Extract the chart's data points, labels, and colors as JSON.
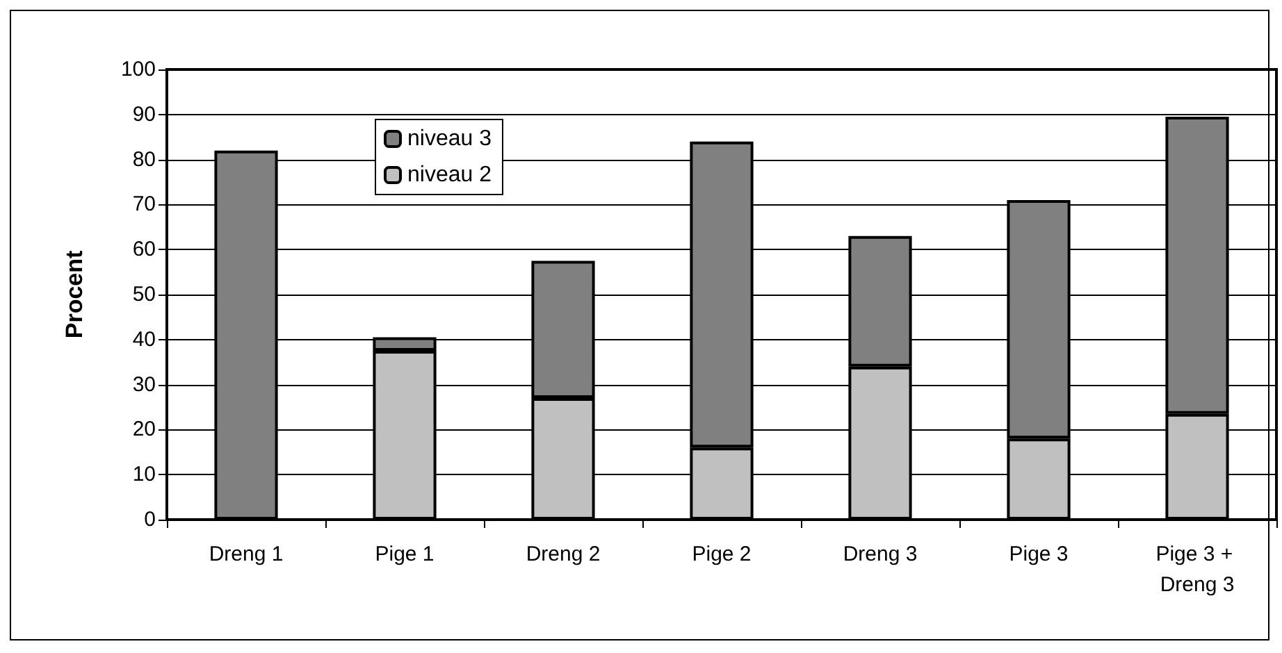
{
  "chart_data": {
    "type": "bar",
    "ylabel": "Procent",
    "categories": [
      "Dreng 1",
      "Pige 1",
      "Dreng 2",
      "Pige 2",
      "Dreng 3",
      "Pige 3",
      "Pige 3 + Dreng 3"
    ],
    "series": [
      {
        "name": "niveau 2",
        "color": "#c0c0c0",
        "values": [
          0,
          37.5,
          27,
          16,
          34,
          18,
          23.5
        ]
      },
      {
        "name": "niveau 3",
        "color": "#808080",
        "values": [
          82,
          3,
          30.5,
          68,
          29,
          53,
          66
        ]
      }
    ],
    "stacked": true,
    "ylim": [
      0,
      100
    ],
    "yticks": [
      0,
      10,
      20,
      30,
      40,
      50,
      60,
      70,
      80,
      90,
      100
    ],
    "grid": "y",
    "legend": "top left"
  }
}
